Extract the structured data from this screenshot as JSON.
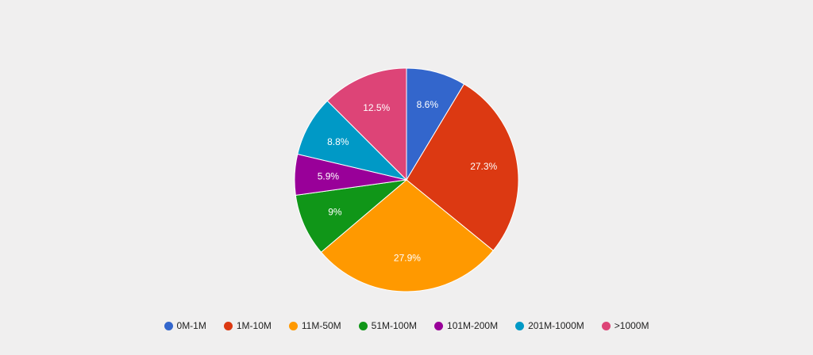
{
  "chart_data": {
    "type": "pie",
    "categories": [
      "0M-1M",
      "1M-10M",
      "11M-50M",
      "51M-100M",
      "101M-200M",
      "201M-1000M",
      ">1000M"
    ],
    "values": [
      8.6,
      27.3,
      27.9,
      9.0,
      5.9,
      8.8,
      12.5
    ],
    "slice_labels": [
      "8.6%",
      "27.3%",
      "27.9%",
      "9%",
      "5.9%",
      "8.8%",
      "12.5%"
    ],
    "colors": [
      "#3366cc",
      "#dc3912",
      "#ff9900",
      "#109618",
      "#990099",
      "#0099c6",
      "#dd4477"
    ],
    "legend_position": "bottom",
    "start": "top",
    "direction": "clockwise"
  }
}
